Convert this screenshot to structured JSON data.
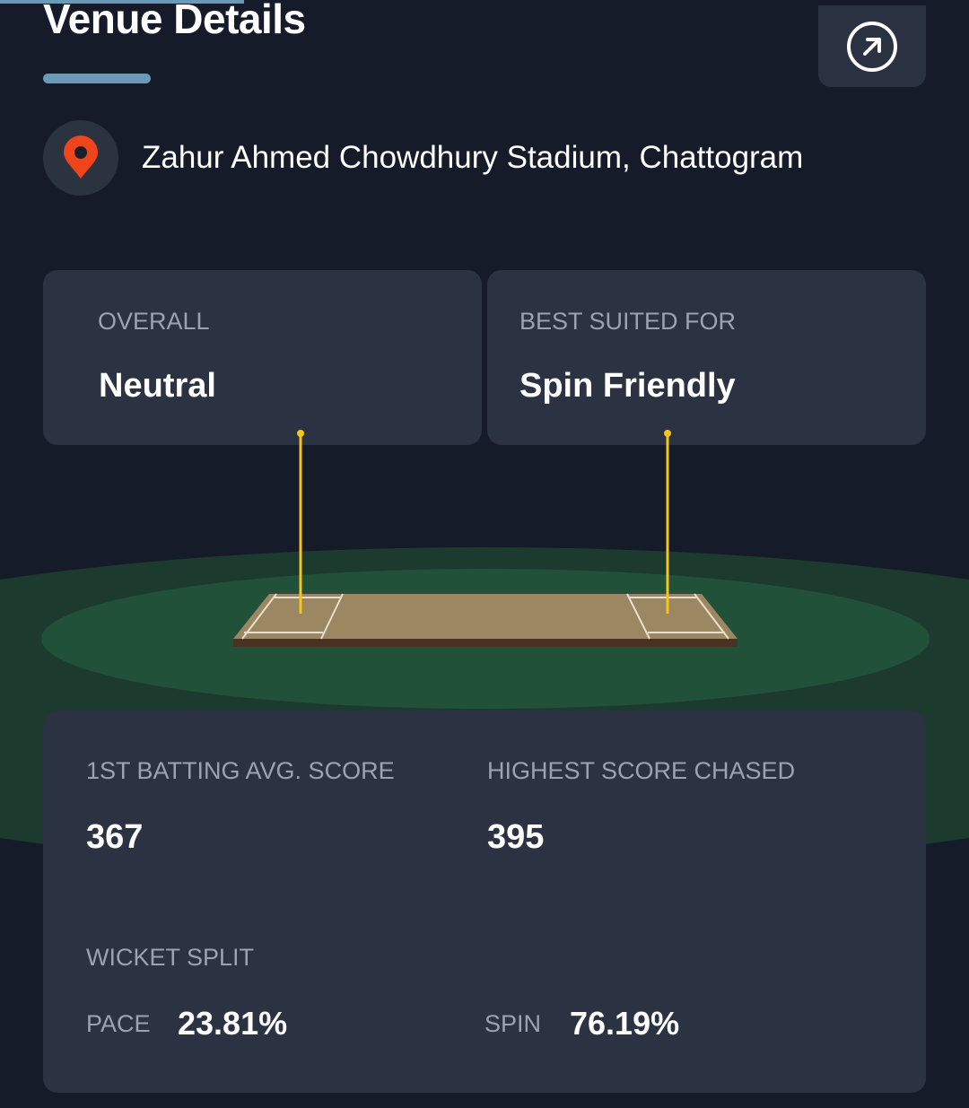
{
  "header": {
    "title": "Venue Details",
    "external_link_icon": "arrow-up-right-circle-icon"
  },
  "venue": {
    "icon": "map-pin-icon",
    "name": "Zahur Ahmed Chowdhury Stadium, Chattogram",
    "pin_color": "#f0441c"
  },
  "pitch_summary": [
    {
      "label": "OVERALL",
      "value": "Neutral"
    },
    {
      "label": "BEST SUITED FOR",
      "value": "Spin Friendly"
    }
  ],
  "stats": {
    "first_batting_avg": {
      "label": "1ST BATTING AVG. SCORE",
      "value": "367"
    },
    "highest_chased": {
      "label": "HIGHEST SCORE CHASED",
      "value": "395"
    },
    "wicket_split": {
      "label": "WICKET SPLIT",
      "pace_label": "PACE",
      "pace_value": "23.81%",
      "spin_label": "SPIN",
      "spin_value": "76.19%"
    }
  },
  "colors": {
    "background": "#151b29",
    "card": "#2b3242",
    "accent": "#6a9ab8",
    "field": "#22513a",
    "stumps": "#f5c518"
  }
}
